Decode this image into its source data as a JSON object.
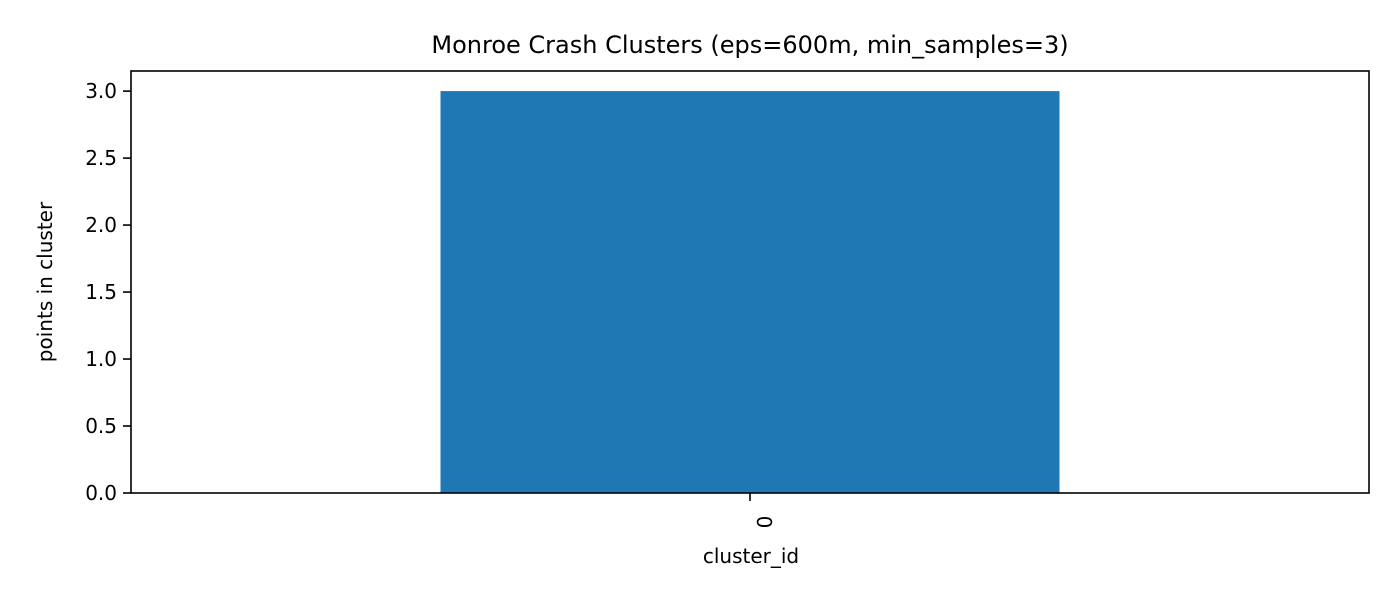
{
  "chart_data": {
    "type": "bar",
    "title": "Monroe Crash Clusters (eps=600m, min_samples=3)",
    "xlabel": "cluster_id",
    "ylabel": "points in cluster",
    "categories": [
      "0"
    ],
    "values": [
      3
    ],
    "ylim": [
      0,
      3.15
    ],
    "yticks": [
      0.0,
      0.5,
      1.0,
      1.5,
      2.0,
      2.5,
      3.0
    ],
    "ytick_labels": [
      "0.0",
      "0.5",
      "1.0",
      "1.5",
      "2.0",
      "2.5",
      "3.0"
    ],
    "bar_color": "#1f77b4",
    "grid": false,
    "legend": false
  }
}
